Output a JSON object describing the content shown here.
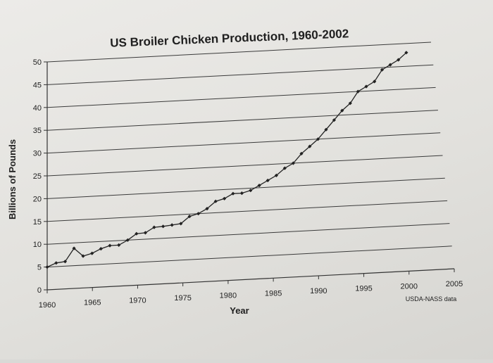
{
  "chart_data": {
    "type": "line",
    "title": "US Broiler Chicken Production, 1960-2002",
    "xlabel": "Year",
    "ylabel": "Billions of Pounds",
    "source": "USDA-NASS data",
    "xlim": [
      1960,
      2005
    ],
    "ylim": [
      0,
      50
    ],
    "xticks": [
      1960,
      1965,
      1970,
      1975,
      1980,
      1985,
      1990,
      1995,
      2000,
      2005
    ],
    "yticks": [
      0,
      5,
      10,
      15,
      20,
      25,
      30,
      35,
      40,
      45,
      50
    ],
    "grid": true,
    "series": [
      {
        "x": [
          1960,
          1961,
          1962,
          1963,
          1964,
          1965,
          1966,
          1967,
          1968,
          1969,
          1970,
          1971,
          1972,
          1973,
          1974,
          1975,
          1976,
          1977,
          1978,
          1979,
          1980,
          1981,
          1982,
          1983,
          1984,
          1985,
          1986,
          1987,
          1988,
          1989,
          1990,
          1991,
          1992,
          1993,
          1994,
          1995,
          1996,
          1997,
          1998,
          1999,
          2000,
          2001,
          2002
        ],
        "values": [
          5.0,
          5.8,
          6.0,
          8.8,
          7.0,
          7.5,
          8.4,
          9.0,
          9.0,
          10.0,
          11.3,
          11.4,
          12.5,
          12.6,
          12.8,
          13.0,
          14.5,
          15.0,
          16.0,
          17.5,
          18.0,
          19.0,
          19.0,
          19.5,
          20.5,
          21.5,
          22.5,
          24.0,
          25.0,
          27.0,
          28.5,
          30.0,
          32.0,
          34.0,
          36.0,
          37.5,
          40.0,
          41.0,
          42.0,
          44.5,
          45.5,
          46.5,
          48.0
        ]
      }
    ]
  }
}
